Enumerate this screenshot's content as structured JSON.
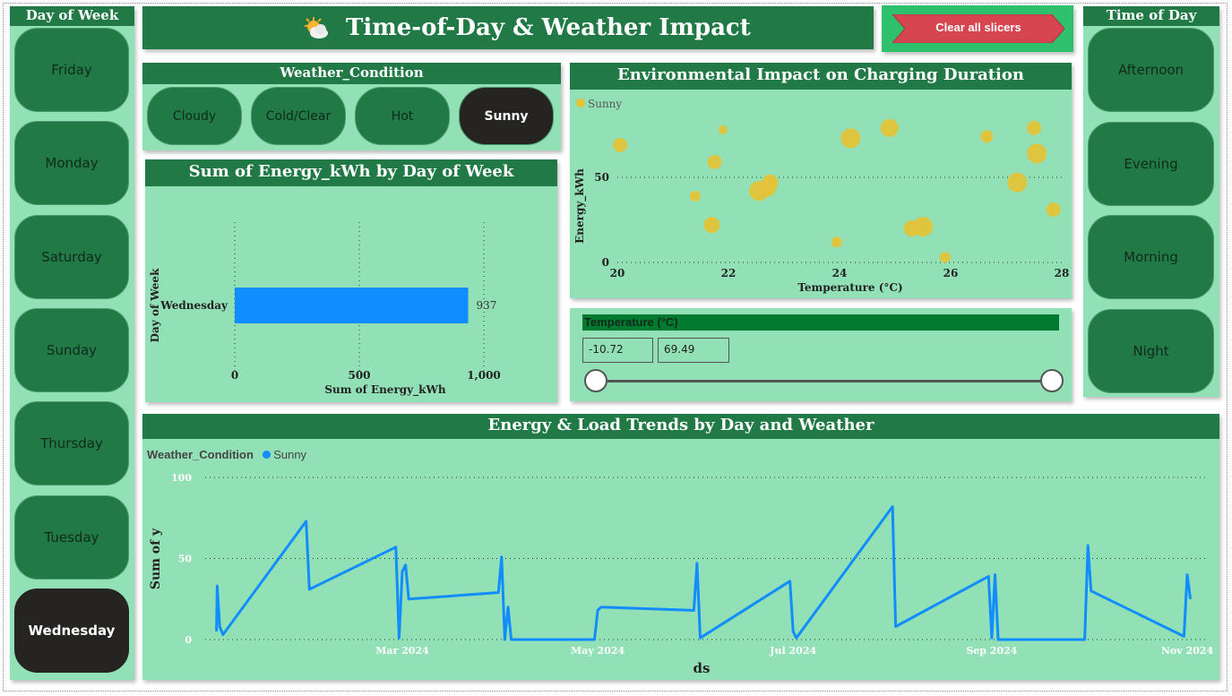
{
  "title": "Time-of-Day & Weather Impact",
  "clear_button": "Clear all slicers",
  "day_slicer": {
    "header": "Day of Week",
    "items": [
      "Friday",
      "Monday",
      "Saturday",
      "Sunday",
      "Thursday",
      "Tuesday",
      "Wednesday"
    ],
    "selected": "Wednesday"
  },
  "time_slicer": {
    "header": "Time of Day",
    "items": [
      "Afternoon",
      "Evening",
      "Morning",
      "Night"
    ]
  },
  "weather_slicer": {
    "header": "Weather_Condition",
    "items": [
      "Cloudy",
      "Cold/Clear",
      "Hot",
      "Sunny"
    ],
    "selected": "Sunny"
  },
  "temp_slider": {
    "header": "Temperature (°C)",
    "min": "-10.72",
    "max": "69.49"
  },
  "colors": {
    "dark_green": "#217a46",
    "panel": "#92e0b6",
    "selected": "#252423",
    "bar": "#118dff",
    "scatter": "#e3c33a",
    "clear": "#d64550"
  },
  "chart_data": [
    {
      "type": "bar",
      "title": "Sum of Energy_kWh by Day of Week",
      "categories": [
        "Wednesday"
      ],
      "values": [
        937
      ],
      "data_labels": [
        "937"
      ],
      "xlabel": "Sum of Energy_kWh",
      "ylabel": "Day of Week",
      "xticks": [
        "0",
        "500",
        "1,000"
      ],
      "xlim": [
        0,
        1000
      ]
    },
    {
      "type": "scatter",
      "title": "Environmental Impact on Charging Duration",
      "legend": [
        "Sunny"
      ],
      "xlabel": "Temperature (°C)",
      "ylabel": "Energy_kWh",
      "xticks": [
        "20",
        "22",
        "24",
        "26",
        "28"
      ],
      "yticks": [
        "0",
        "50"
      ],
      "xlim": [
        20,
        28
      ],
      "ylim": [
        0,
        79
      ],
      "points": [
        {
          "x": 20.05,
          "y": 69,
          "s": 8
        },
        {
          "x": 21.9,
          "y": 78,
          "s": 5
        },
        {
          "x": 21.75,
          "y": 59,
          "s": 8
        },
        {
          "x": 21.4,
          "y": 39,
          "s": 6
        },
        {
          "x": 21.7,
          "y": 22,
          "s": 9
        },
        {
          "x": 22.55,
          "y": 42,
          "s": 11
        },
        {
          "x": 22.7,
          "y": 44,
          "s": 10
        },
        {
          "x": 22.75,
          "y": 47,
          "s": 9
        },
        {
          "x": 24.2,
          "y": 73,
          "s": 11
        },
        {
          "x": 24.9,
          "y": 79,
          "s": 10
        },
        {
          "x": 23.95,
          "y": 12,
          "s": 6
        },
        {
          "x": 25.3,
          "y": 20,
          "s": 9
        },
        {
          "x": 25.5,
          "y": 21,
          "s": 11
        },
        {
          "x": 25.9,
          "y": 3,
          "s": 6
        },
        {
          "x": 26.65,
          "y": 74,
          "s": 7
        },
        {
          "x": 27.5,
          "y": 79,
          "s": 8
        },
        {
          "x": 27.55,
          "y": 64,
          "s": 11
        },
        {
          "x": 27.2,
          "y": 47,
          "s": 11
        },
        {
          "x": 27.85,
          "y": 31,
          "s": 8
        }
      ]
    },
    {
      "type": "line",
      "title": "Energy & Load Trends by Day and Weather",
      "legend_title": "Weather_Condition",
      "series": [
        {
          "name": "Sunny",
          "points": [
            [
              "2024-01-03",
              5
            ],
            [
              "2024-01-03",
              33
            ],
            [
              "2024-01-04",
              8
            ],
            [
              "2024-01-05",
              3
            ],
            [
              "2024-01-31",
              73
            ],
            [
              "2024-02-01",
              31
            ],
            [
              "2024-02-28",
              57
            ],
            [
              "2024-02-29",
              1
            ],
            [
              "2024-03-01",
              42
            ],
            [
              "2024-03-02",
              46
            ],
            [
              "2024-03-03",
              25
            ],
            [
              "2024-03-31",
              29
            ],
            [
              "2024-04-01",
              51
            ],
            [
              "2024-04-02",
              0
            ],
            [
              "2024-04-03",
              20
            ],
            [
              "2024-04-04",
              0
            ],
            [
              "2024-04-30",
              0
            ],
            [
              "2024-05-01",
              18
            ],
            [
              "2024-05-02",
              20
            ],
            [
              "2024-05-31",
              18
            ],
            [
              "2024-06-01",
              47
            ],
            [
              "2024-06-02",
              1
            ],
            [
              "2024-06-30",
              36
            ],
            [
              "2024-07-01",
              5
            ],
            [
              "2024-07-02",
              1
            ],
            [
              "2024-08-01",
              82
            ],
            [
              "2024-08-02",
              8
            ],
            [
              "2024-08-31",
              39
            ],
            [
              "2024-09-01",
              1
            ],
            [
              "2024-09-02",
              40
            ],
            [
              "2024-09-03",
              0
            ],
            [
              "2024-09-30",
              0
            ],
            [
              "2024-10-01",
              58
            ],
            [
              "2024-10-02",
              30
            ],
            [
              "2024-10-31",
              2
            ],
            [
              "2024-11-01",
              40
            ],
            [
              "2024-11-02",
              25
            ]
          ]
        }
      ],
      "xlabel": "ds",
      "ylabel": "Sum of y",
      "xticks": [
        "Mar 2024",
        "May 2024",
        "Jul 2024",
        "Sep 2024",
        "Nov 2024"
      ],
      "yticks": [
        "0",
        "50",
        "100"
      ],
      "ylim": [
        0,
        100
      ]
    }
  ]
}
